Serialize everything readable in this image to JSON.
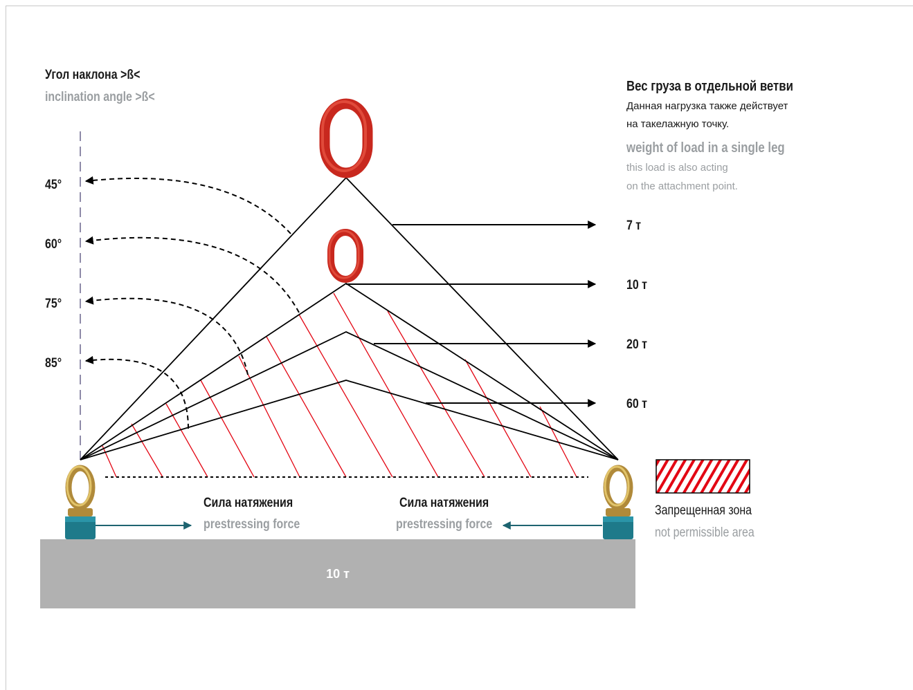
{
  "header": {
    "angle_title_ru": "Угол наклона >ß<",
    "angle_title_en": "inclination angle >ß<"
  },
  "angles": [
    "45°",
    "60°",
    "75°",
    "85°"
  ],
  "weight_info": {
    "title_ru": "Вес груза в отдельной ветви",
    "desc_ru_line1": "Данная нагрузка также действует",
    "desc_ru_line2": "на такелажную точку.",
    "title_en": "weight of load in a single leg",
    "desc_en_line1": "this load is also acting",
    "desc_en_line2": "on the attachment point."
  },
  "loads": [
    "7 т",
    "10 т",
    "20 т",
    "60 т"
  ],
  "force": {
    "label_ru": "Сила натяжения",
    "label_en": "prestressing force"
  },
  "legend": {
    "label_ru": "Запрещенная зона",
    "label_en": "not permissible area"
  },
  "base": {
    "label": "10 т"
  },
  "colors": {
    "hatch": "#e30613",
    "ring": "#c8281e",
    "force_arrow": "#1e6470",
    "base": "#b1b1b1",
    "axis_dash": "#8e8aa8"
  }
}
